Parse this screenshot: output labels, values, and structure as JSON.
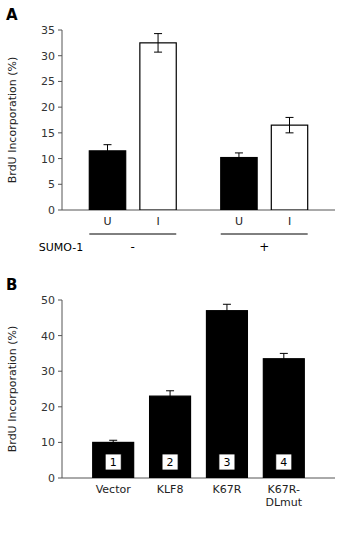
{
  "chart_data": [
    {
      "type": "bar",
      "panel_label": "A",
      "categories": [
        "U",
        "I",
        "U",
        "I"
      ],
      "values": [
        11.5,
        32.5,
        10.2,
        16.5
      ],
      "errors": [
        1.2,
        1.8,
        0.9,
        1.5
      ],
      "colors": [
        "#000000",
        "#ffffff",
        "#000000",
        "#ffffff"
      ],
      "group_label": "SUMO-1",
      "group_names": [
        "-",
        "+"
      ],
      "ylabel": "BrdU Incorporation (%)",
      "ylim": [
        0,
        35
      ],
      "yticks": [
        0,
        5,
        10,
        15,
        20,
        25,
        30,
        35
      ]
    },
    {
      "type": "bar",
      "panel_label": "B",
      "categories": [
        "Vector",
        "KLF8",
        "K67R",
        "K67R-\nDLmut"
      ],
      "values": [
        10.0,
        23.0,
        47.0,
        33.5
      ],
      "errors": [
        0.6,
        1.5,
        1.8,
        1.5
      ],
      "box_labels": [
        "1",
        "2",
        "3",
        "4"
      ],
      "color": "#000000",
      "ylabel": "BrdU Incorporation (%)",
      "ylim": [
        0,
        50
      ],
      "yticks": [
        0,
        10,
        20,
        30,
        40,
        50
      ]
    }
  ]
}
